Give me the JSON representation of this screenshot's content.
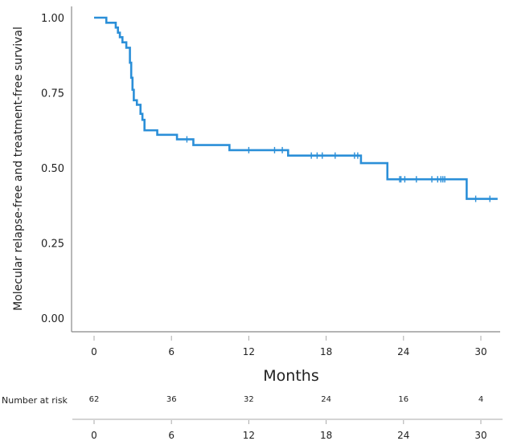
{
  "chart_data": {
    "type": "line",
    "subtype": "kaplan-meier",
    "ylabel": "Molecular relapse-free and treatment-free survival",
    "xlabel": "Months",
    "xlim": [
      -1.7,
      31.5
    ],
    "ylim": [
      0,
      1
    ],
    "x_ticks": [
      0,
      6,
      12,
      18,
      24,
      30
    ],
    "y_ticks": [
      "0.00",
      "0.25",
      "0.50",
      "0.75",
      "1.00"
    ],
    "grid": false,
    "color": "#2b8fd8",
    "steps": [
      [
        0,
        1.0
      ],
      [
        0.95,
        0.983
      ],
      [
        1.68,
        0.967
      ],
      [
        1.85,
        0.95
      ],
      [
        2.0,
        0.935
      ],
      [
        2.2,
        0.918
      ],
      [
        2.5,
        0.9
      ],
      [
        2.78,
        0.85
      ],
      [
        2.88,
        0.8
      ],
      [
        2.98,
        0.76
      ],
      [
        3.08,
        0.725
      ],
      [
        3.32,
        0.71
      ],
      [
        3.6,
        0.68
      ],
      [
        3.75,
        0.66
      ],
      [
        3.91,
        0.625
      ],
      [
        4.9,
        0.61
      ],
      [
        6.43,
        0.595
      ],
      [
        7.7,
        0.576
      ],
      [
        10.5,
        0.559
      ],
      [
        15.05,
        0.541
      ],
      [
        20.7,
        0.516
      ],
      [
        22.75,
        0.462
      ],
      [
        28.9,
        0.397
      ]
    ],
    "end_x": 31.3,
    "censored": [
      7.2,
      12.0,
      14.0,
      14.6,
      16.85,
      17.3,
      17.7,
      18.7,
      20.2,
      20.45,
      23.7,
      23.8,
      24.1,
      25.0,
      26.2,
      26.65,
      26.9,
      27.05,
      27.2,
      29.6,
      30.7
    ],
    "risk_table": {
      "label": "Number at risk",
      "times": [
        0,
        6,
        12,
        18,
        24,
        30
      ],
      "counts": [
        "62",
        "36",
        "32",
        "24",
        "16",
        "4"
      ]
    }
  }
}
